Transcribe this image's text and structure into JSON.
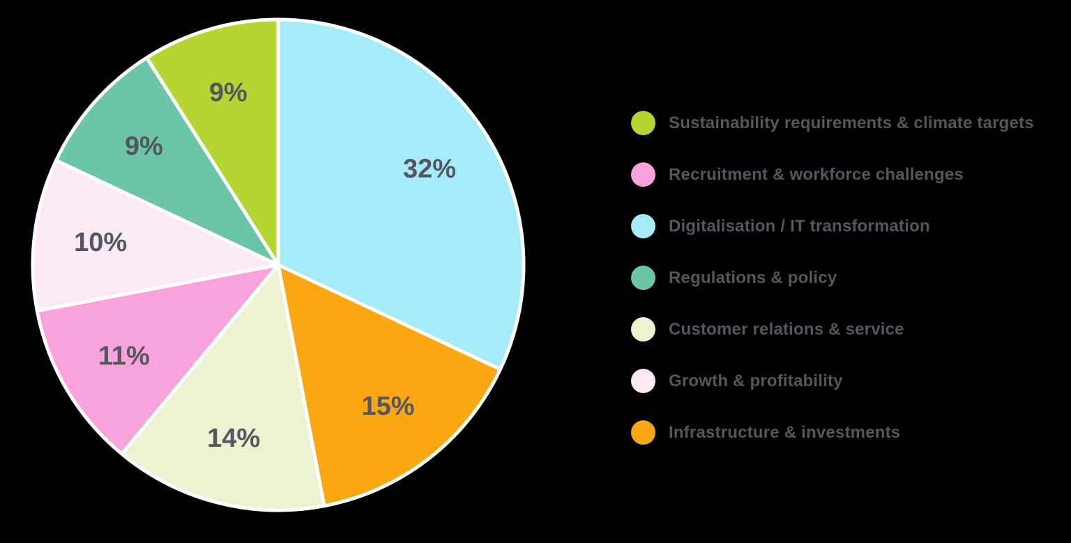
{
  "figure": {
    "background": "#000000",
    "label_color": "#54575F",
    "slice_border_color": "#FFFFFF"
  },
  "chart_data": {
    "type": "pie",
    "title": "",
    "direction": "clockwise",
    "start_angle_deg": 0,
    "legend_position": "right",
    "data_labels": "percent",
    "slices": [
      {
        "label": "Digitalisation / IT transformation",
        "value": 32,
        "display": "32%",
        "color": "#A5EBF8"
      },
      {
        "label": "Infrastructure & investments",
        "value": 15,
        "display": "15%",
        "color": "#FBA713"
      },
      {
        "label": "Customer relations & service",
        "value": 14,
        "display": "14%",
        "color": "#EDF2D1"
      },
      {
        "label": "Recruitment & workforce challenges",
        "value": 11,
        "display": "11%",
        "color": "#F9A2DC"
      },
      {
        "label": "Growth & profitability",
        "value": 10,
        "display": "10%",
        "color": "#FCE9F6"
      },
      {
        "label": "Regulations & policy",
        "value": 9,
        "display": "9%",
        "color": "#6BC6A8"
      },
      {
        "label": "Sustainability requirements & climate targets",
        "value": 9,
        "display": "9%",
        "color": "#B5D631"
      }
    ],
    "legend": [
      {
        "label": "Sustainability requirements & climate targets",
        "color": "#B5D631"
      },
      {
        "label": "Recruitment & workforce challenges",
        "color": "#F9A2DC"
      },
      {
        "label": "Digitalisation / IT transformation",
        "color": "#A5EBF8"
      },
      {
        "label": "Regulations & policy",
        "color": "#6BC6A8"
      },
      {
        "label": "Customer relations & service",
        "color": "#EDF2D1"
      },
      {
        "label": "Growth & profitability",
        "color": "#FCE9F6"
      },
      {
        "label": "Infrastructure & investments",
        "color": "#FBA713"
      }
    ]
  }
}
